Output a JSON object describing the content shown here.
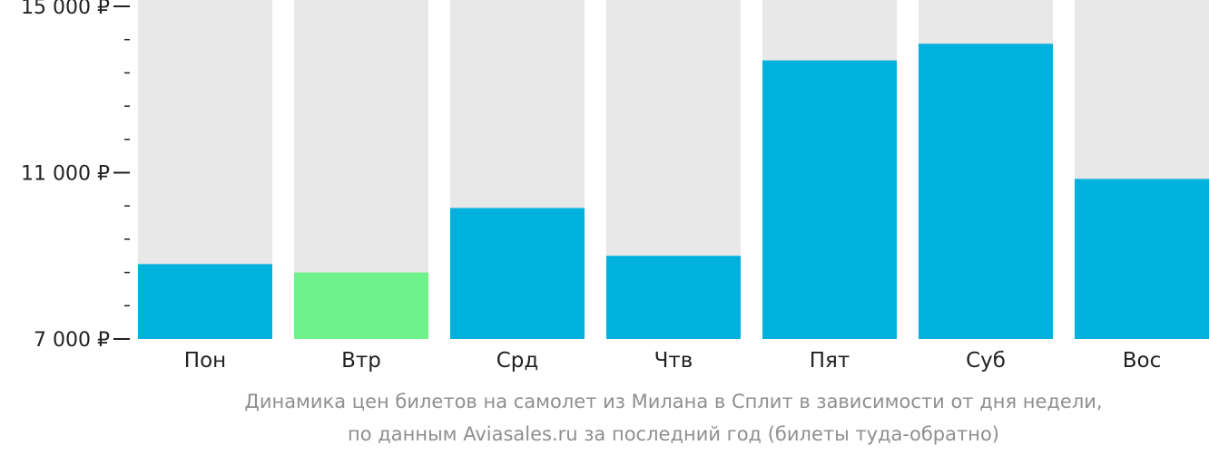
{
  "chart_data": {
    "type": "bar",
    "categories": [
      "Пон",
      "Втр",
      "Срд",
      "Чтв",
      "Пят",
      "Суб",
      "Вос"
    ],
    "values": [
      8800,
      8600,
      10150,
      9000,
      13700,
      14100,
      10850
    ],
    "ylim": [
      7000,
      15000
    ],
    "yticks": [
      {
        "value": 15000,
        "label": "15 000 ₽"
      },
      {
        "value": 11000,
        "label": "11 000 ₽"
      },
      {
        "value": 7000,
        "label": "7 000 ₽"
      }
    ],
    "minor_tick_step": 800,
    "highlight_index": 1,
    "colors": {
      "bar": "#00b0dd",
      "highlight": "#6ef38a",
      "background_column": "#e8e8e8",
      "axis": "#222222"
    },
    "caption_line1": "Динамика цен билетов на самолет из Милана в Сплит в зависимости от дня недели,",
    "caption_line2": "по данным Aviasales.ru за последний год (билеты туда-обратно)"
  }
}
